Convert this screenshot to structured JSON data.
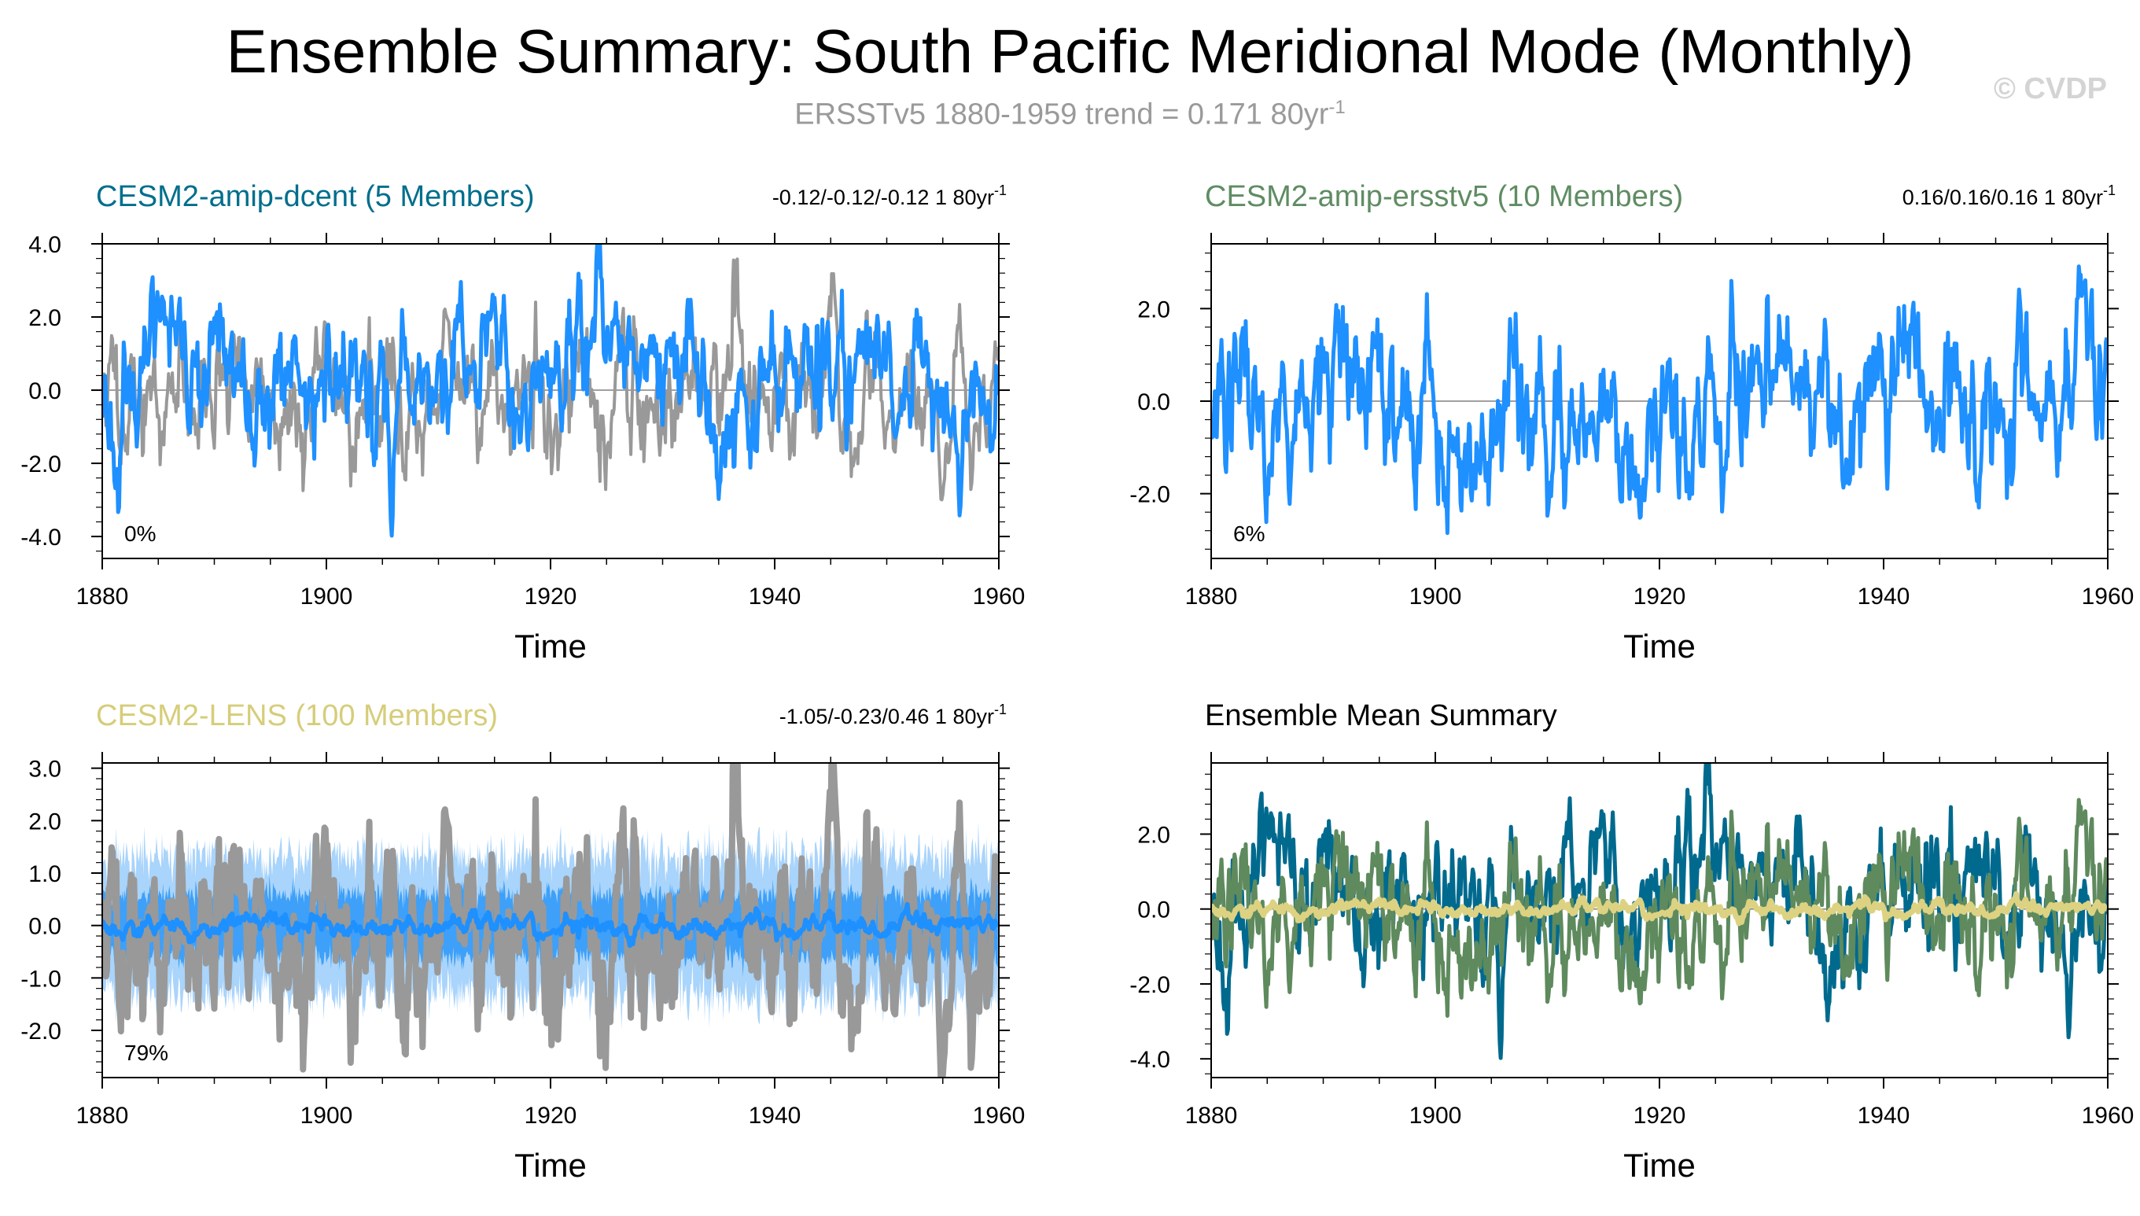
{
  "header": {
    "title": "Ensemble Summary: South Pacific Meridional Mode (Monthly)",
    "subtitle_main": "ERSSTv5 1880-1959 trend = 0.171 80yr",
    "subtitle_exp": "-1",
    "copyright": "© CVDP"
  },
  "colors": {
    "observed": "#999999",
    "dcent_series": "#1e90ff",
    "ersstv5_series": "#1e90ff",
    "lens_mean": "#1e90ff",
    "lens_band_outer": "#a9d4fb",
    "lens_band_inner": "#3ea0f8",
    "title_dcent": "#006e8c",
    "title_ersstv5": "#5f8c63",
    "title_lens": "#d6cd7a",
    "title_summary": "#000000",
    "summary_dcent": "#006a8e",
    "summary_ersstv5": "#5e8a5e",
    "summary_lens": "#dcd282",
    "zero_line": "#808080"
  },
  "chart_data": [
    {
      "id": "dcent",
      "type": "line",
      "title": "CESM2-amip-dcent (5 Members)",
      "title_color_key": "title_dcent",
      "trend_text": "-0.12/-0.12/-0.12 1 80yr",
      "trend_exp": "-1",
      "percent_label": "0%",
      "xlabel": "Time",
      "xlim": [
        1880,
        1960
      ],
      "xticks": [
        1880,
        1900,
        1920,
        1940,
        1960
      ],
      "ylim": [
        -4.6,
        4.0
      ],
      "yticks": [
        4.0,
        2.0,
        0.0,
        -2.0,
        -4.0
      ],
      "ytick_labels": [
        "4.0",
        "2.0",
        "0.0",
        "-2.0",
        "-4.0"
      ],
      "ylabels_shown": true,
      "series": [
        {
          "name": "ERSSTv5",
          "role": "observed",
          "color_key": "observed",
          "width": 4,
          "amplitude": 1.0,
          "seed": 11
        },
        {
          "name": "CESM2-amip-dcent mean",
          "role": "model",
          "color_key": "dcent_series",
          "width": 5,
          "amplitude": 1.05,
          "seed": 23
        }
      ]
    },
    {
      "id": "ersstv5",
      "type": "line",
      "title": "CESM2-amip-ersstv5 (10 Members)",
      "title_color_key": "title_ersstv5",
      "trend_text": "0.16/0.16/0.16 1 80yr",
      "trend_exp": "-1",
      "percent_label": "6%",
      "xlabel": "Time",
      "xlim": [
        1880,
        1960
      ],
      "xticks": [
        1880,
        1900,
        1920,
        1940,
        1960
      ],
      "ylim": [
        -3.4,
        3.4
      ],
      "yticks": [
        2.0,
        0.0,
        -2.0
      ],
      "ytick_labels": [
        "2.0",
        "0.0",
        "-2.0"
      ],
      "ylabels_shown": true,
      "series": [
        {
          "name": "CESM2-amip-ersstv5 mean",
          "role": "model",
          "color_key": "ersstv5_series",
          "width": 5,
          "amplitude": 1.0,
          "seed": 37
        }
      ]
    },
    {
      "id": "lens",
      "type": "area",
      "title": "CESM2-LENS (100 Members)",
      "title_color_key": "title_lens",
      "trend_text": "-1.05/-0.23/0.46 1 80yr",
      "trend_exp": "-1",
      "percent_label": "79%",
      "xlabel": "Time",
      "xlim": [
        1880,
        1960
      ],
      "xticks": [
        1880,
        1900,
        1920,
        1940,
        1960
      ],
      "ylim": [
        -2.9,
        3.1
      ],
      "yticks": [
        3.0,
        2.0,
        1.0,
        0.0,
        -1.0,
        -2.0
      ],
      "ytick_labels": [
        "3.0",
        "2.0",
        "1.0",
        "0.0",
        "-1.0",
        "-2.0"
      ],
      "ylabels_shown": true,
      "band_outer": [
        -1.3,
        1.3
      ],
      "band_inner": [
        -0.6,
        0.6
      ],
      "series": [
        {
          "name": "ERSSTv5",
          "role": "observed",
          "color_key": "observed",
          "width": 8,
          "amplitude": 1.0,
          "seed": 11
        },
        {
          "name": "CESM2-LENS ensemble mean",
          "role": "mean",
          "color_key": "lens_mean",
          "width": 6,
          "amplitude": 0.12,
          "seed": 53
        }
      ]
    },
    {
      "id": "summary",
      "type": "line",
      "title": "Ensemble Mean Summary",
      "title_color_key": "title_summary",
      "trend_text": "",
      "trend_exp": "",
      "percent_label": "",
      "xlabel": "Time",
      "xlim": [
        1880,
        1960
      ],
      "xticks": [
        1880,
        1900,
        1920,
        1940,
        1960
      ],
      "ylim": [
        -4.5,
        3.9
      ],
      "yticks": [
        2.0,
        0.0,
        -2.0,
        -4.0
      ],
      "ytick_labels": [
        "2.0",
        "0.0",
        "-2.0",
        "-4.0"
      ],
      "ylabels_shown": true,
      "series": [
        {
          "name": "CESM2-amip-dcent",
          "role": "model",
          "color_key": "summary_dcent",
          "width": 5,
          "amplitude": 1.05,
          "seed": 23
        },
        {
          "name": "CESM2-amip-ersstv5",
          "role": "model",
          "color_key": "summary_ersstv5",
          "width": 5,
          "amplitude": 1.0,
          "seed": 37
        },
        {
          "name": "CESM2-LENS",
          "role": "mean",
          "color_key": "summary_lens",
          "width": 7,
          "amplitude": 0.12,
          "seed": 53
        }
      ]
    }
  ]
}
